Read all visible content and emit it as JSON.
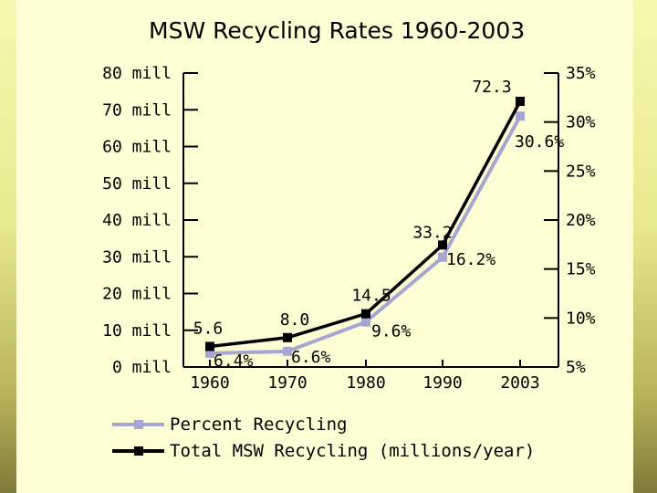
{
  "colors": {
    "total_series": "#000000",
    "percent_series": "#a6a6d2",
    "panel_background": "#fffdd4"
  },
  "chart_data": {
    "type": "line",
    "title": "MSW Recycling Rates 1960-2003",
    "categories": [
      "1960",
      "1970",
      "1980",
      "1990",
      "2003"
    ],
    "left_axis": {
      "ylim": [
        0,
        80
      ],
      "ticks": [
        0,
        10,
        20,
        30,
        40,
        50,
        60,
        70,
        80
      ],
      "tick_labels": [
        "0 mill",
        "10 mill",
        "20 mill",
        "30 mill",
        "40 mill",
        "50 mill",
        "60 mill",
        "70 mill",
        "80 mill"
      ]
    },
    "right_axis": {
      "ylim": [
        5,
        35
      ],
      "ticks": [
        5,
        10,
        15,
        20,
        25,
        30,
        35
      ],
      "tick_labels": [
        "5%",
        "10%",
        "15%",
        "20%",
        "25%",
        "30%",
        "35%"
      ]
    },
    "series": [
      {
        "name": "Total MSW Recycling (millions/year)",
        "axis": "left",
        "values": [
          5.6,
          8.0,
          14.5,
          33.2,
          72.3
        ],
        "labels": [
          "5.6",
          "8.0",
          "14.5",
          "33.2",
          "72.3"
        ]
      },
      {
        "name": "Percent Recycling",
        "axis": "right",
        "values": [
          6.4,
          6.6,
          9.6,
          16.2,
          30.6
        ],
        "labels": [
          "6.4%",
          "6.6%",
          "9.6%",
          "16.2%",
          "30.6%"
        ]
      }
    ],
    "legend": [
      "Percent Recycling",
      "Total MSW Recycling (millions/year)"
    ],
    "grid": false,
    "legend_position": "bottom"
  }
}
